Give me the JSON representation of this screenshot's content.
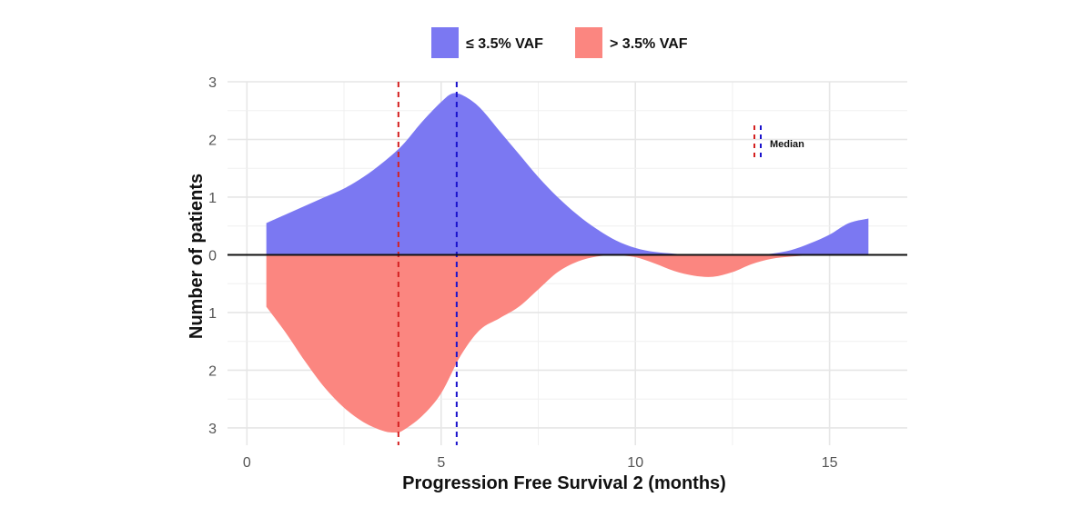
{
  "chart_data": {
    "type": "area",
    "title": "",
    "xlabel": "Progression Free Survival 2 (months)",
    "ylabel": "Number of patients",
    "xlim": [
      -0.5,
      17
    ],
    "ylim": [
      -3.3,
      3.0
    ],
    "x_ticks": [
      0,
      5,
      10,
      15
    ],
    "x_tick_labels": [
      "0",
      "5",
      "10",
      "15"
    ],
    "y_ticks": [
      3,
      2,
      1,
      0,
      -1,
      -2,
      -3
    ],
    "y_tick_labels": [
      "3",
      "2",
      "1",
      "0",
      "1",
      "2",
      "3"
    ],
    "grid": true,
    "legend_position": "top",
    "series": [
      {
        "name": "≤ 3.5% VAF",
        "color": "#7b78f2",
        "direction": "up",
        "x": [
          0.5,
          1.0,
          1.5,
          2.0,
          2.5,
          3.0,
          3.5,
          4.0,
          4.5,
          5.0,
          5.3,
          5.6,
          6.0,
          6.5,
          7.0,
          7.5,
          8.0,
          8.5,
          9.0,
          9.5,
          10.0,
          10.5,
          11.0,
          11.5,
          12.0,
          12.5,
          13.0,
          13.5,
          14.0,
          14.5,
          15.0,
          15.5,
          16.0
        ],
        "values": [
          0.55,
          0.7,
          0.85,
          1.0,
          1.15,
          1.35,
          1.6,
          1.9,
          2.3,
          2.65,
          2.8,
          2.75,
          2.55,
          2.15,
          1.75,
          1.35,
          1.0,
          0.7,
          0.45,
          0.25,
          0.12,
          0.05,
          0.02,
          0.0,
          0.0,
          0.0,
          0.0,
          0.02,
          0.08,
          0.2,
          0.35,
          0.55,
          0.63
        ],
        "median": 5.4
      },
      {
        "name": "> 3.5% VAF",
        "color": "#fb8680",
        "direction": "down",
        "x": [
          0.5,
          1.0,
          1.5,
          2.0,
          2.5,
          3.0,
          3.5,
          3.8,
          4.0,
          4.5,
          5.0,
          5.5,
          6.0,
          6.5,
          7.0,
          7.5,
          8.0,
          8.5,
          9.0,
          9.5,
          10.0,
          10.5,
          11.0,
          11.5,
          12.0,
          12.5,
          13.0,
          13.5,
          14.0,
          14.5,
          15.0
        ],
        "values": [
          0.9,
          1.35,
          1.85,
          2.3,
          2.65,
          2.9,
          3.05,
          3.08,
          3.05,
          2.8,
          2.4,
          1.75,
          1.3,
          1.1,
          0.9,
          0.6,
          0.3,
          0.12,
          0.03,
          0.01,
          0.04,
          0.15,
          0.28,
          0.36,
          0.38,
          0.3,
          0.16,
          0.07,
          0.03,
          0.01,
          0.0
        ],
        "median": 3.9
      }
    ],
    "annotations": [
      {
        "text": "Median",
        "type": "legend-inset"
      }
    ]
  }
}
